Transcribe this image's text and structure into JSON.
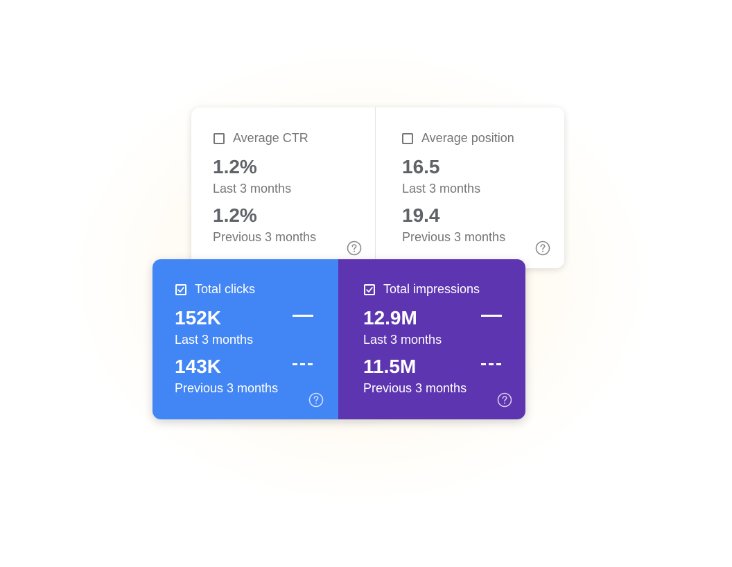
{
  "metrics": {
    "ctr": {
      "label": "Average CTR",
      "checked": false,
      "current_value": "1.2%",
      "current_period": "Last 3 months",
      "previous_value": "1.2%",
      "previous_period": "Previous 3 months"
    },
    "position": {
      "label": "Average position",
      "checked": false,
      "current_value": "16.5",
      "current_period": "Last 3 months",
      "previous_value": "19.4",
      "previous_period": "Previous 3 months"
    },
    "clicks": {
      "label": "Total clicks",
      "checked": true,
      "current_value": "152K",
      "current_period": "Last 3 months",
      "previous_value": "143K",
      "previous_period": "Previous 3 months",
      "color": "#4285f4"
    },
    "impressions": {
      "label": "Total impressions",
      "checked": true,
      "current_value": "12.9M",
      "current_period": "Last 3 months",
      "previous_value": "11.5M",
      "previous_period": "Previous 3 months",
      "color": "#5e35b1"
    }
  },
  "icons": {
    "help": "help-circle-icon",
    "checkbox_checked": "checkbox-checked-icon",
    "checkbox_empty": "checkbox-empty-icon"
  }
}
